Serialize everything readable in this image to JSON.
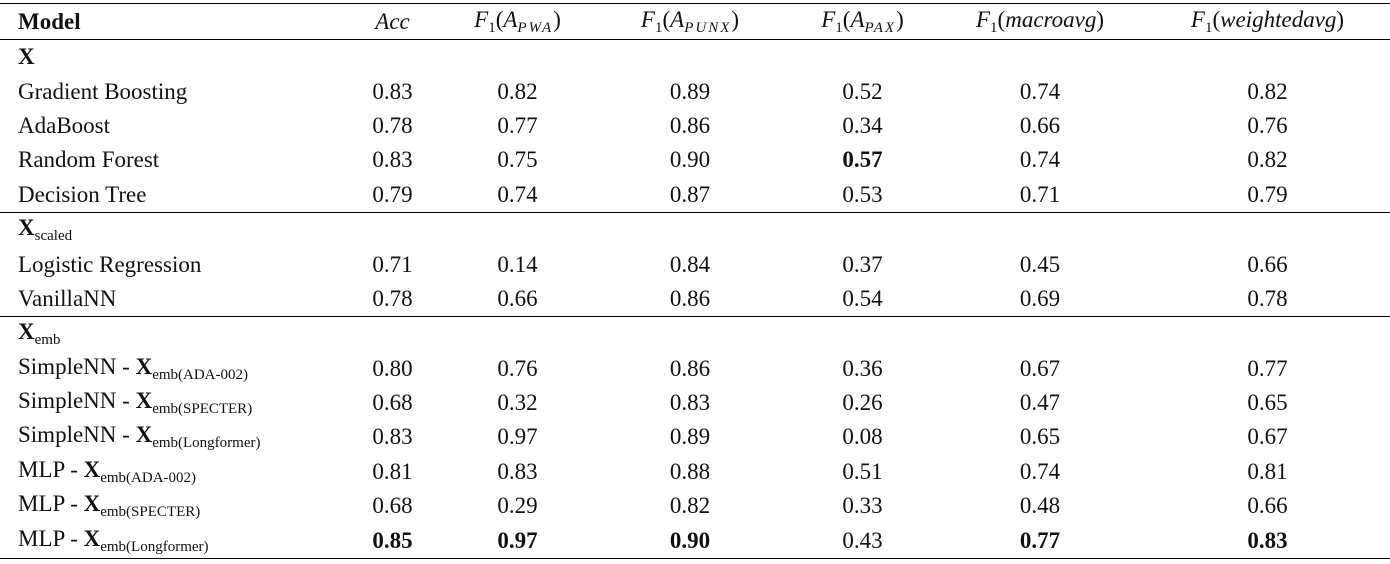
{
  "table": {
    "header": [
      [
        {
          "t": "Model",
          "s": "b"
        }
      ],
      [
        {
          "t": "Acc",
          "s": "i"
        }
      ],
      [
        {
          "t": "F",
          "s": "i"
        },
        {
          "t": "1",
          "s": "sub"
        },
        {
          "t": "("
        },
        {
          "t": "A",
          "s": "i"
        },
        {
          "t": "PWA",
          "s": "subi"
        },
        {
          "t": ")"
        }
      ],
      [
        {
          "t": "F",
          "s": "i"
        },
        {
          "t": "1",
          "s": "sub"
        },
        {
          "t": "("
        },
        {
          "t": "A",
          "s": "i"
        },
        {
          "t": "PUNX",
          "s": "subi"
        },
        {
          "t": ")"
        }
      ],
      [
        {
          "t": "F",
          "s": "i"
        },
        {
          "t": "1",
          "s": "sub"
        },
        {
          "t": "("
        },
        {
          "t": "A",
          "s": "i"
        },
        {
          "t": "PAX",
          "s": "subi"
        },
        {
          "t": ")"
        }
      ],
      [
        {
          "t": "F",
          "s": "i"
        },
        {
          "t": "1",
          "s": "sub"
        },
        {
          "t": "("
        },
        {
          "t": "macroavg",
          "s": "i"
        },
        {
          "t": ")"
        }
      ],
      [
        {
          "t": "F",
          "s": "i"
        },
        {
          "t": "1",
          "s": "sub"
        },
        {
          "t": "("
        },
        {
          "t": "weightedavg",
          "s": "i"
        },
        {
          "t": ")"
        }
      ]
    ],
    "groups": [
      {
        "label": [
          {
            "t": "X",
            "s": "b"
          }
        ],
        "rows": [
          [
            [
              {
                "t": "Gradient Boosting"
              }
            ],
            [
              {
                "t": "0.83"
              }
            ],
            [
              {
                "t": "0.82"
              }
            ],
            [
              {
                "t": "0.89"
              }
            ],
            [
              {
                "t": "0.52"
              }
            ],
            [
              {
                "t": "0.74"
              }
            ],
            [
              {
                "t": "0.82"
              }
            ]
          ],
          [
            [
              {
                "t": "AdaBoost"
              }
            ],
            [
              {
                "t": "0.78"
              }
            ],
            [
              {
                "t": "0.77"
              }
            ],
            [
              {
                "t": "0.86"
              }
            ],
            [
              {
                "t": "0.34"
              }
            ],
            [
              {
                "t": "0.66"
              }
            ],
            [
              {
                "t": "0.76"
              }
            ]
          ],
          [
            [
              {
                "t": "Random Forest"
              }
            ],
            [
              {
                "t": "0.83"
              }
            ],
            [
              {
                "t": "0.75"
              }
            ],
            [
              {
                "t": "0.90"
              }
            ],
            [
              {
                "t": "0.57",
                "s": "b"
              }
            ],
            [
              {
                "t": "0.74"
              }
            ],
            [
              {
                "t": "0.82"
              }
            ]
          ],
          [
            [
              {
                "t": "Decision Tree"
              }
            ],
            [
              {
                "t": "0.79"
              }
            ],
            [
              {
                "t": "0.74"
              }
            ],
            [
              {
                "t": "0.87"
              }
            ],
            [
              {
                "t": "0.53"
              }
            ],
            [
              {
                "t": "0.71"
              }
            ],
            [
              {
                "t": "0.79"
              }
            ]
          ]
        ]
      },
      {
        "label": [
          {
            "t": "X",
            "s": "b"
          },
          {
            "t": "scaled",
            "s": "sub"
          }
        ],
        "rows": [
          [
            [
              {
                "t": "Logistic Regression"
              }
            ],
            [
              {
                "t": "0.71"
              }
            ],
            [
              {
                "t": "0.14"
              }
            ],
            [
              {
                "t": "0.84"
              }
            ],
            [
              {
                "t": "0.37"
              }
            ],
            [
              {
                "t": "0.45"
              }
            ],
            [
              {
                "t": "0.66"
              }
            ]
          ],
          [
            [
              {
                "t": "VanillaNN"
              }
            ],
            [
              {
                "t": "0.78"
              }
            ],
            [
              {
                "t": "0.66"
              }
            ],
            [
              {
                "t": "0.86"
              }
            ],
            [
              {
                "t": "0.54"
              }
            ],
            [
              {
                "t": "0.69"
              }
            ],
            [
              {
                "t": "0.78"
              }
            ]
          ]
        ]
      },
      {
        "label": [
          {
            "t": "X",
            "s": "b"
          },
          {
            "t": "emb",
            "s": "sub"
          }
        ],
        "rows": [
          [
            [
              {
                "t": "SimpleNN - "
              },
              {
                "t": "X",
                "s": "b"
              },
              {
                "t": "emb(ADA-002)",
                "s": "sub"
              }
            ],
            [
              {
                "t": "0.80"
              }
            ],
            [
              {
                "t": "0.76"
              }
            ],
            [
              {
                "t": "0.86"
              }
            ],
            [
              {
                "t": "0.36"
              }
            ],
            [
              {
                "t": "0.67"
              }
            ],
            [
              {
                "t": "0.77"
              }
            ]
          ],
          [
            [
              {
                "t": "SimpleNN - "
              },
              {
                "t": "X",
                "s": "b"
              },
              {
                "t": "emb(SPECTER)",
                "s": "sub"
              }
            ],
            [
              {
                "t": "0.68"
              }
            ],
            [
              {
                "t": "0.32"
              }
            ],
            [
              {
                "t": "0.83"
              }
            ],
            [
              {
                "t": "0.26"
              }
            ],
            [
              {
                "t": "0.47"
              }
            ],
            [
              {
                "t": "0.65"
              }
            ]
          ],
          [
            [
              {
                "t": "SimpleNN - "
              },
              {
                "t": "X",
                "s": "b"
              },
              {
                "t": "emb(Longformer)",
                "s": "sub"
              }
            ],
            [
              {
                "t": "0.83"
              }
            ],
            [
              {
                "t": "0.97"
              }
            ],
            [
              {
                "t": "0.89"
              }
            ],
            [
              {
                "t": "0.08"
              }
            ],
            [
              {
                "t": "0.65"
              }
            ],
            [
              {
                "t": "0.67"
              }
            ]
          ],
          [
            [
              {
                "t": "MLP - "
              },
              {
                "t": "X",
                "s": "b"
              },
              {
                "t": "emb(ADA-002)",
                "s": "sub"
              }
            ],
            [
              {
                "t": "0.81"
              }
            ],
            [
              {
                "t": "0.83"
              }
            ],
            [
              {
                "t": "0.88"
              }
            ],
            [
              {
                "t": "0.51"
              }
            ],
            [
              {
                "t": "0.74"
              }
            ],
            [
              {
                "t": "0.81"
              }
            ]
          ],
          [
            [
              {
                "t": "MLP - "
              },
              {
                "t": "X",
                "s": "b"
              },
              {
                "t": "emb(SPECTER)",
                "s": "sub"
              }
            ],
            [
              {
                "t": "0.68"
              }
            ],
            [
              {
                "t": "0.29"
              }
            ],
            [
              {
                "t": "0.82"
              }
            ],
            [
              {
                "t": "0.33"
              }
            ],
            [
              {
                "t": "0.48"
              }
            ],
            [
              {
                "t": "0.66"
              }
            ]
          ],
          [
            [
              {
                "t": "MLP - "
              },
              {
                "t": "X",
                "s": "b"
              },
              {
                "t": "emb(Longformer)",
                "s": "sub"
              }
            ],
            [
              {
                "t": "0.85",
                "s": "b"
              }
            ],
            [
              {
                "t": "0.97",
                "s": "b"
              }
            ],
            [
              {
                "t": "0.90",
                "s": "b"
              }
            ],
            [
              {
                "t": "0.43"
              }
            ],
            [
              {
                "t": "0.77",
                "s": "b"
              }
            ],
            [
              {
                "t": "0.83",
                "s": "b"
              }
            ]
          ]
        ]
      }
    ]
  }
}
